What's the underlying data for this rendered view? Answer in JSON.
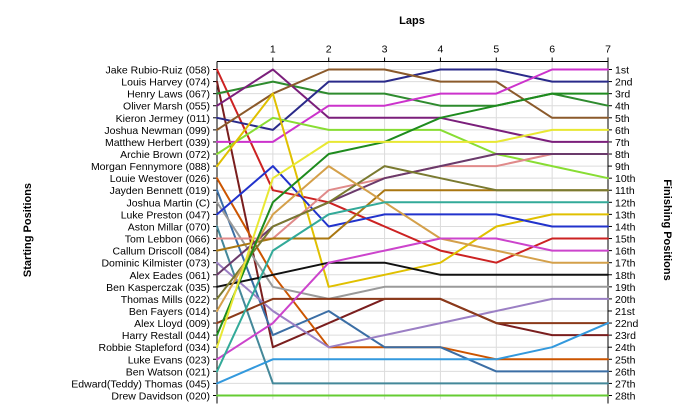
{
  "chart_data": {
    "type": "line",
    "title": "Laps",
    "ylabel_left": "Starting Positions",
    "ylabel_right": "Finishing Positions",
    "laps": [
      "1",
      "2",
      "3",
      "4",
      "5",
      "6",
      "7"
    ],
    "xlim": [
      0,
      7
    ],
    "finishing_labels": [
      "1st",
      "2nd",
      "3rd",
      "4th",
      "5th",
      "6th",
      "7th",
      "8th",
      "9th",
      "10th",
      "11th",
      "12th",
      "13th",
      "14th",
      "15th",
      "16th",
      "17th",
      "18th",
      "19th",
      "20th",
      "21st",
      "22nd",
      "23rd",
      "24th",
      "25th",
      "26th",
      "27th",
      "28th"
    ],
    "series": [
      {
        "name": "Jake Rubio-Ruiz (058)",
        "color": "#cc2222",
        "positions": [
          1,
          11,
          12,
          14,
          16,
          17,
          15,
          15
        ]
      },
      {
        "name": "Louis Harvey (074)",
        "color": "#7a1e1e",
        "positions": [
          2,
          24,
          22,
          20,
          20,
          22,
          23,
          23
        ]
      },
      {
        "name": "Henry Laws (067)",
        "color": "#2e8b2e",
        "positions": [
          3,
          2,
          3,
          3,
          4,
          4,
          3,
          4
        ]
      },
      {
        "name": "Oliver Marsh (055)",
        "color": "#7b1f7b",
        "positions": [
          4,
          1,
          5,
          5,
          5,
          6,
          7,
          7
        ]
      },
      {
        "name": "Kieron Jermey (011)",
        "color": "#2a2a8a",
        "positions": [
          5,
          6,
          2,
          2,
          1,
          1,
          2,
          2
        ]
      },
      {
        "name": "Joshua Newman (099)",
        "color": "#8b5a2b",
        "positions": [
          6,
          3,
          1,
          1,
          2,
          2,
          5,
          5
        ]
      },
      {
        "name": "Matthew Herbert (039)",
        "color": "#cc33cc",
        "positions": [
          7,
          7,
          4,
          4,
          3,
          3,
          1,
          1
        ]
      },
      {
        "name": "Archie Brown (072)",
        "color": "#88dd33",
        "positions": [
          8,
          5,
          6,
          6,
          6,
          8,
          9,
          10
        ]
      },
      {
        "name": "Morgan Fennymore (088)",
        "color": "#e0c000",
        "positions": [
          9,
          3,
          19,
          18,
          17,
          14,
          13,
          13
        ]
      },
      {
        "name": "Louie Westover (026)",
        "color": "#cc5500",
        "positions": [
          10,
          18,
          24,
          24,
          24,
          25,
          25,
          25
        ]
      },
      {
        "name": "Jayden Bennett (019)",
        "color": "#3b6ea5",
        "positions": [
          11,
          23,
          21,
          24,
          24,
          26,
          26,
          26
        ]
      },
      {
        "name": "Joshua Martin (C)",
        "color": "#9a9a9a",
        "positions": [
          12,
          19,
          20,
          19,
          19,
          19,
          19,
          19
        ]
      },
      {
        "name": "Luke Preston (047)",
        "color": "#2233cc",
        "positions": [
          13,
          9,
          14,
          13,
          13,
          13,
          14,
          14
        ]
      },
      {
        "name": "Aston Millar (070)",
        "color": "#448899",
        "positions": [
          14,
          27,
          27,
          27,
          27,
          27,
          27,
          27
        ]
      },
      {
        "name": "Tom Lebbon (066)",
        "color": "#e08a8a",
        "positions": [
          15,
          15,
          11,
          10,
          9,
          9,
          8,
          8
        ]
      },
      {
        "name": "Callum Driscoll (084)",
        "color": "#aa7711",
        "positions": [
          16,
          15,
          15,
          11,
          11,
          11,
          11,
          11
        ]
      },
      {
        "name": "Dominic Kilmister (073)",
        "color": "#9b7fc4",
        "positions": [
          17,
          21,
          24,
          23,
          22,
          21,
          20,
          20
        ]
      },
      {
        "name": "Alex Eades (061)",
        "color": "#6b3a6b",
        "positions": [
          18,
          14,
          12,
          10,
          9,
          8,
          8,
          8
        ]
      },
      {
        "name": "Ben Kasperczak (035)",
        "color": "#111111",
        "positions": [
          19,
          18,
          17,
          17,
          18,
          18,
          18,
          18
        ]
      },
      {
        "name": "Thomas Mills (022)",
        "color": "#7a7a30",
        "positions": [
          20,
          14,
          12,
          9,
          10,
          11,
          11,
          11
        ]
      },
      {
        "name": "Ben Fayers (014)",
        "color": "#d4a04a",
        "positions": [
          21,
          13,
          9,
          12,
          15,
          16,
          17,
          17
        ]
      },
      {
        "name": "Alex Lloyd (009)",
        "color": "#8b3a1a",
        "positions": [
          22,
          20,
          20,
          20,
          20,
          22,
          22,
          22
        ]
      },
      {
        "name": "Harry Restall (044)",
        "color": "#1e8b1e",
        "positions": [
          23,
          12,
          8,
          7,
          5,
          4,
          3,
          3
        ]
      },
      {
        "name": "Robbie Stapleford (034)",
        "color": "#e8e833",
        "positions": [
          24,
          10,
          7,
          7,
          7,
          7,
          6,
          6
        ]
      },
      {
        "name": "Luke Evans (023)",
        "color": "#cc44cc",
        "positions": [
          25,
          22,
          17,
          16,
          15,
          15,
          16,
          16
        ]
      },
      {
        "name": "Ben Watson (021)",
        "color": "#33aa99",
        "positions": [
          26,
          16,
          13,
          12,
          12,
          12,
          12,
          12
        ]
      },
      {
        "name": "Edward(Teddy) Thomas (045)",
        "color": "#3399dd",
        "positions": [
          27,
          25,
          25,
          25,
          25,
          25,
          24,
          22
        ]
      },
      {
        "name": "Drew Davidson (020)",
        "color": "#66cc33",
        "positions": [
          28,
          28,
          28,
          28,
          28,
          28,
          28,
          28
        ]
      }
    ]
  }
}
